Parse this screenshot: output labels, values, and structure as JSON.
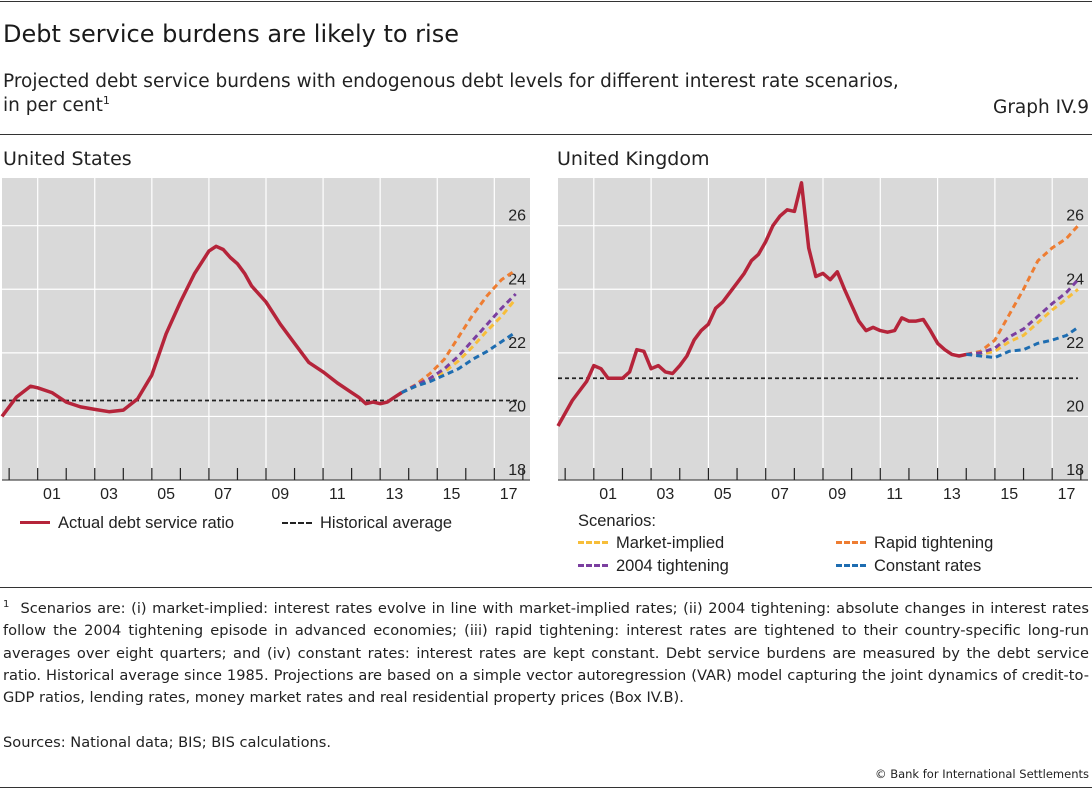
{
  "header": {
    "title": "Debt service burdens are likely to rise",
    "subtitle_line1": "Projected debt service burdens with endogenous debt levels for different interest rate scenarios,",
    "subtitle_line2": "in per cent",
    "subtitle_footnote_marker": "1",
    "graph_number": "Graph IV.9"
  },
  "colors": {
    "actual": "#b5243a",
    "historical": "#222222",
    "market_implied": "#f7be3a",
    "rapid_tightening": "#ee7d32",
    "tightening_2004": "#7b3fa0",
    "constant_rates": "#1e6db1",
    "plot_bg": "#d9d9d9",
    "grid": "#ffffff"
  },
  "legend": {
    "actual_label": "Actual debt service ratio",
    "historical_label": "Historical average",
    "scenarios_title": "Scenarios:",
    "market_implied_label": "Market-implied",
    "rapid_tightening_label": "Rapid tightening",
    "tightening_2004_label": "2004 tightening",
    "constant_rates_label": "Constant rates"
  },
  "chart_data": [
    {
      "type": "line",
      "title": "United States",
      "xlabel": "",
      "ylabel": "",
      "y_axis_side": "right",
      "xlim": [
        1999.75,
        2018.25
      ],
      "ylim": [
        18,
        27.5
      ],
      "y_ticks": [
        18,
        20,
        22,
        24,
        26
      ],
      "x_ticks": [
        "01",
        "03",
        "05",
        "07",
        "09",
        "11",
        "13",
        "15",
        "17"
      ],
      "grid": "horizontal",
      "historical_average": 20.5,
      "historical_range": [
        1999.75,
        2017.9
      ],
      "series": [
        {
          "name": "Actual debt service ratio",
          "key": "actual",
          "style": "solid",
          "x": [
            1999.75,
            2000.25,
            2000.75,
            2001.0,
            2001.5,
            2002.0,
            2002.5,
            2003.0,
            2003.5,
            2004.0,
            2004.5,
            2005.0,
            2005.5,
            2006.0,
            2006.5,
            2007.0,
            2007.25,
            2007.5,
            2007.75,
            2008.0,
            2008.25,
            2008.5,
            2009.0,
            2009.5,
            2010.0,
            2010.5,
            2011.0,
            2011.5,
            2012.0,
            2012.25,
            2012.5,
            2012.75,
            2013.0,
            2013.25,
            2013.5,
            2013.75
          ],
          "y": [
            20.0,
            20.6,
            20.95,
            20.9,
            20.75,
            20.45,
            20.3,
            20.22,
            20.15,
            20.2,
            20.55,
            21.3,
            22.6,
            23.6,
            24.5,
            25.2,
            25.35,
            25.25,
            25.0,
            24.8,
            24.5,
            24.1,
            23.6,
            22.9,
            22.3,
            21.7,
            21.4,
            21.05,
            20.75,
            20.6,
            20.4,
            20.45,
            20.4,
            20.45,
            20.6,
            20.75
          ],
          "labels": []
        },
        {
          "name": "Market-implied",
          "key": "market_implied",
          "style": "dashed",
          "x": [
            2013.75,
            2014.25,
            2014.75,
            2015.25,
            2015.75,
            2016.25,
            2016.75,
            2017.25,
            2017.75
          ],
          "y": [
            20.75,
            20.95,
            21.15,
            21.4,
            21.75,
            22.2,
            22.7,
            23.15,
            23.7
          ],
          "labels": []
        },
        {
          "name": "Rapid tightening",
          "key": "rapid_tightening",
          "style": "dashed",
          "x": [
            2013.75,
            2014.25,
            2014.75,
            2015.25,
            2015.75,
            2016.25,
            2016.75,
            2017.25,
            2017.75
          ],
          "y": [
            20.75,
            21.0,
            21.35,
            21.8,
            22.5,
            23.2,
            23.8,
            24.3,
            24.6
          ],
          "labels": []
        },
        {
          "name": "2004 tightening",
          "key": "tightening_2004",
          "style": "dashed",
          "x": [
            2013.75,
            2014.25,
            2014.75,
            2015.25,
            2015.75,
            2016.25,
            2016.75,
            2017.25,
            2017.75
          ],
          "y": [
            20.75,
            20.98,
            21.2,
            21.5,
            21.9,
            22.4,
            22.9,
            23.4,
            23.85
          ],
          "labels": []
        },
        {
          "name": "Constant rates",
          "key": "constant_rates",
          "style": "dashed",
          "x": [
            2013.75,
            2014.25,
            2014.75,
            2015.25,
            2015.75,
            2016.25,
            2016.75,
            2017.25,
            2017.75
          ],
          "y": [
            20.75,
            20.95,
            21.1,
            21.3,
            21.5,
            21.8,
            22.05,
            22.35,
            22.65
          ],
          "labels": []
        }
      ]
    },
    {
      "type": "line",
      "title": "United Kingdom",
      "xlabel": "",
      "ylabel": "",
      "y_axis_side": "right",
      "xlim": [
        1999.75,
        2018.25
      ],
      "ylim": [
        18,
        27.5
      ],
      "y_ticks": [
        18,
        20,
        22,
        24,
        26
      ],
      "x_ticks": [
        "01",
        "03",
        "05",
        "07",
        "09",
        "11",
        "13",
        "15",
        "17"
      ],
      "grid": "horizontal",
      "historical_average": 21.2,
      "historical_range": [
        1999.75,
        2017.9
      ],
      "series": [
        {
          "name": "Actual debt service ratio",
          "key": "actual",
          "style": "solid",
          "x": [
            1999.75,
            2000.25,
            2000.75,
            2001.0,
            2001.25,
            2001.5,
            2002.0,
            2002.25,
            2002.5,
            2002.75,
            2003.0,
            2003.25,
            2003.5,
            2003.75,
            2004.0,
            2004.25,
            2004.5,
            2004.75,
            2005.0,
            2005.25,
            2005.5,
            2005.75,
            2006.0,
            2006.25,
            2006.5,
            2006.75,
            2007.0,
            2007.25,
            2007.5,
            2007.75,
            2008.0,
            2008.25,
            2008.5,
            2008.75,
            2009.0,
            2009.25,
            2009.5,
            2009.75,
            2010.0,
            2010.25,
            2010.5,
            2010.75,
            2011.0,
            2011.25,
            2011.5,
            2011.75,
            2012.0,
            2012.25,
            2012.5,
            2012.75,
            2013.0,
            2013.25,
            2013.5,
            2013.75,
            2014.0
          ],
          "y": [
            19.7,
            20.5,
            21.1,
            21.6,
            21.5,
            21.2,
            21.2,
            21.4,
            22.1,
            22.05,
            21.5,
            21.6,
            21.4,
            21.35,
            21.6,
            21.9,
            22.4,
            22.7,
            22.9,
            23.4,
            23.6,
            23.9,
            24.2,
            24.5,
            24.9,
            25.1,
            25.5,
            26.0,
            26.3,
            26.5,
            26.45,
            27.35,
            25.3,
            24.4,
            24.5,
            24.3,
            24.55,
            24.0,
            23.5,
            23.0,
            22.7,
            22.8,
            22.7,
            22.65,
            22.7,
            23.1,
            23.0,
            23.0,
            23.05,
            22.7,
            22.3,
            22.1,
            21.95,
            21.9,
            21.95
          ],
          "labels": []
        },
        {
          "name": "Market-implied",
          "key": "market_implied",
          "style": "dashed",
          "x": [
            2014.0,
            2014.5,
            2015.0,
            2015.5,
            2016.0,
            2016.5,
            2017.0,
            2017.5,
            2017.9
          ],
          "y": [
            21.95,
            21.95,
            22.05,
            22.35,
            22.55,
            22.95,
            23.35,
            23.7,
            24.0
          ],
          "labels": []
        },
        {
          "name": "Rapid tightening",
          "key": "rapid_tightening",
          "style": "dashed",
          "x": [
            2014.0,
            2014.5,
            2015.0,
            2015.5,
            2016.0,
            2016.5,
            2017.0,
            2017.5,
            2017.9
          ],
          "y": [
            21.95,
            22.05,
            22.4,
            23.2,
            24.0,
            24.9,
            25.3,
            25.6,
            26.0
          ],
          "labels": []
        },
        {
          "name": "2004 tightening",
          "key": "tightening_2004",
          "style": "dashed",
          "x": [
            2014.0,
            2014.5,
            2015.0,
            2015.5,
            2016.0,
            2016.5,
            2017.0,
            2017.5,
            2017.9
          ],
          "y": [
            21.95,
            22.0,
            22.15,
            22.5,
            22.75,
            23.15,
            23.55,
            23.9,
            24.3
          ],
          "labels": []
        },
        {
          "name": "Constant rates",
          "key": "constant_rates",
          "style": "dashed",
          "x": [
            2014.0,
            2014.5,
            2015.0,
            2015.5,
            2016.0,
            2016.5,
            2017.0,
            2017.5,
            2017.9
          ],
          "y": [
            21.95,
            21.9,
            21.85,
            22.05,
            22.1,
            22.3,
            22.4,
            22.55,
            22.8
          ],
          "labels": []
        }
      ]
    }
  ],
  "footnote": {
    "marker": "1",
    "text": "Scenarios are: (i) market-implied: interest rates evolve in line with market-implied rates; (ii) 2004 tightening: absolute changes in interest rates follow the 2004 tightening episode in advanced economies; (iii) rapid tightening: interest rates are tightened to their country-specific long-run averages over eight quarters; and (iv) constant rates: interest rates are kept constant. Debt service burdens are measured by the debt service ratio. Historical average since 1985. Projections are based on a simple vector autoregression (VAR) model capturing the joint dynamics of credit-to-GDP ratios, lending rates, money market rates and real residential property prices (Box IV.B)."
  },
  "sources": "Sources: National data; BIS; BIS calculations.",
  "copyright": "© Bank for International Settlements"
}
